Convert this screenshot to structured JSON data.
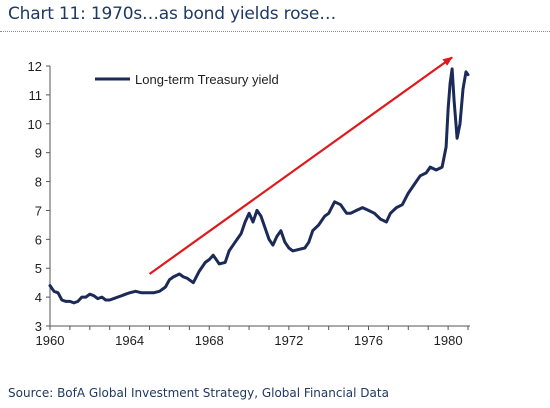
{
  "header": {
    "title": "Chart 11: 1970s…as bond yields rose…"
  },
  "footer": {
    "source": "Source: BofA Global Investment Strategy, Global Financial Data"
  },
  "colors": {
    "line": "#1b2a57",
    "arrow": "#e0191c",
    "text": "#1f3864",
    "axis": "#555555"
  },
  "chart_data": {
    "type": "line",
    "title": "Chart 11: 1970s…as bond yields rose…",
    "xlabel": "",
    "ylabel": "",
    "xlim": [
      1960,
      1981.1
    ],
    "ylim": [
      3,
      12
    ],
    "xticks": [
      1960,
      1964,
      1968,
      1972,
      1976,
      1980
    ],
    "yticks": [
      3,
      4,
      5,
      6,
      7,
      8,
      9,
      10,
      11,
      12
    ],
    "grid": false,
    "legend": "top-left",
    "series": [
      {
        "name": "Long-term Treasury yield",
        "points": [
          [
            1960.0,
            4.4
          ],
          [
            1960.2,
            4.2
          ],
          [
            1960.4,
            4.15
          ],
          [
            1960.6,
            3.9
          ],
          [
            1960.8,
            3.85
          ],
          [
            1961.0,
            3.85
          ],
          [
            1961.2,
            3.8
          ],
          [
            1961.4,
            3.85
          ],
          [
            1961.6,
            4.0
          ],
          [
            1961.8,
            4.0
          ],
          [
            1962.0,
            4.1
          ],
          [
            1962.2,
            4.05
          ],
          [
            1962.4,
            3.95
          ],
          [
            1962.6,
            4.0
          ],
          [
            1962.8,
            3.9
          ],
          [
            1963.0,
            3.9
          ],
          [
            1963.2,
            3.95
          ],
          [
            1963.4,
            4.0
          ],
          [
            1963.6,
            4.05
          ],
          [
            1963.8,
            4.1
          ],
          [
            1964.0,
            4.15
          ],
          [
            1964.3,
            4.2
          ],
          [
            1964.6,
            4.15
          ],
          [
            1964.9,
            4.15
          ],
          [
            1965.2,
            4.15
          ],
          [
            1965.5,
            4.2
          ],
          [
            1965.8,
            4.35
          ],
          [
            1966.0,
            4.6
          ],
          [
            1966.2,
            4.7
          ],
          [
            1966.5,
            4.8
          ],
          [
            1966.7,
            4.7
          ],
          [
            1966.9,
            4.65
          ],
          [
            1967.2,
            4.5
          ],
          [
            1967.5,
            4.9
          ],
          [
            1967.8,
            5.2
          ],
          [
            1968.0,
            5.3
          ],
          [
            1968.2,
            5.45
          ],
          [
            1968.5,
            5.15
          ],
          [
            1968.8,
            5.2
          ],
          [
            1969.0,
            5.6
          ],
          [
            1969.3,
            5.9
          ],
          [
            1969.6,
            6.2
          ],
          [
            1969.8,
            6.6
          ],
          [
            1970.0,
            6.9
          ],
          [
            1970.2,
            6.6
          ],
          [
            1970.4,
            7.0
          ],
          [
            1970.6,
            6.8
          ],
          [
            1970.8,
            6.4
          ],
          [
            1971.0,
            6.0
          ],
          [
            1971.2,
            5.8
          ],
          [
            1971.4,
            6.1
          ],
          [
            1971.6,
            6.3
          ],
          [
            1971.8,
            5.9
          ],
          [
            1972.0,
            5.7
          ],
          [
            1972.2,
            5.6
          ],
          [
            1972.5,
            5.65
          ],
          [
            1972.8,
            5.7
          ],
          [
            1973.0,
            5.9
          ],
          [
            1973.2,
            6.3
          ],
          [
            1973.5,
            6.5
          ],
          [
            1973.8,
            6.8
          ],
          [
            1974.0,
            6.9
          ],
          [
            1974.3,
            7.3
          ],
          [
            1974.6,
            7.2
          ],
          [
            1974.9,
            6.9
          ],
          [
            1975.1,
            6.9
          ],
          [
            1975.4,
            7.0
          ],
          [
            1975.7,
            7.1
          ],
          [
            1976.0,
            7.0
          ],
          [
            1976.3,
            6.9
          ],
          [
            1976.6,
            6.7
          ],
          [
            1976.9,
            6.6
          ],
          [
            1977.1,
            6.9
          ],
          [
            1977.4,
            7.1
          ],
          [
            1977.7,
            7.2
          ],
          [
            1978.0,
            7.6
          ],
          [
            1978.3,
            7.9
          ],
          [
            1978.6,
            8.2
          ],
          [
            1978.9,
            8.3
          ],
          [
            1979.1,
            8.5
          ],
          [
            1979.4,
            8.4
          ],
          [
            1979.7,
            8.5
          ],
          [
            1979.9,
            9.2
          ],
          [
            1980.0,
            10.5
          ],
          [
            1980.1,
            11.4
          ],
          [
            1980.2,
            11.9
          ],
          [
            1980.3,
            10.8
          ],
          [
            1980.45,
            9.5
          ],
          [
            1980.6,
            10.0
          ],
          [
            1980.75,
            11.2
          ],
          [
            1980.9,
            11.8
          ],
          [
            1981.0,
            11.7
          ]
        ]
      }
    ],
    "annotations": [
      {
        "type": "arrow",
        "from": [
          1965.0,
          4.8
        ],
        "to": [
          1980.2,
          12.3
        ],
        "color": "#e0191c"
      }
    ]
  }
}
